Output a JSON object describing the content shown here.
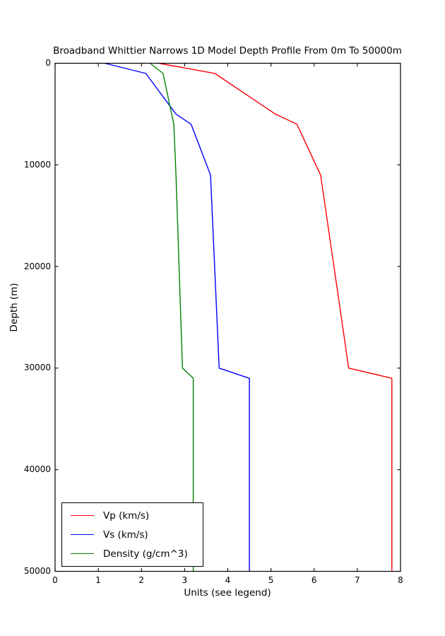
{
  "figure": {
    "background": "#ffffff",
    "text_color": "#000000"
  },
  "chart_data": {
    "type": "line",
    "title": "Broadband Whittier Narrows 1D Model Depth Profile From 0m To 50000m",
    "xlabel": "Units (see legend)",
    "ylabel": "Depth (m)",
    "xlim": [
      0,
      8
    ],
    "ylim": [
      0,
      50000
    ],
    "y_axis_inverted": true,
    "grid": false,
    "frame": "full-box",
    "tick_direction": "in",
    "x_ticks": [
      "0",
      "1",
      "2",
      "3",
      "4",
      "5",
      "6",
      "7",
      "8"
    ],
    "y_ticks": [
      "0",
      "10000",
      "20000",
      "30000",
      "40000",
      "50000"
    ],
    "legend_position": "lower-left",
    "series": [
      {
        "name": "Vp (km/s)",
        "color": "#ff0000",
        "points_value_depth_m": [
          [
            2.4,
            0
          ],
          [
            3.7,
            1000
          ],
          [
            5.1,
            5000
          ],
          [
            5.6,
            6000
          ],
          [
            6.15,
            11000
          ],
          [
            6.8,
            30000
          ],
          [
            7.8,
            31000
          ],
          [
            7.8,
            50000
          ]
        ]
      },
      {
        "name": "Vs (km/s)",
        "color": "#0000ff",
        "points_value_depth_m": [
          [
            1.15,
            0
          ],
          [
            2.1,
            1000
          ],
          [
            2.8,
            5000
          ],
          [
            3.15,
            6000
          ],
          [
            3.6,
            11000
          ],
          [
            3.8,
            30000
          ],
          [
            4.5,
            31000
          ],
          [
            4.5,
            50000
          ]
        ]
      },
      {
        "name": "Density (g/cm^3)",
        "color": "#008000",
        "points_value_depth_m": [
          [
            2.2,
            0
          ],
          [
            2.5,
            1000
          ],
          [
            2.7,
            5000
          ],
          [
            2.75,
            6000
          ],
          [
            2.8,
            11000
          ],
          [
            2.95,
            30000
          ],
          [
            3.2,
            31000
          ],
          [
            3.2,
            50000
          ]
        ]
      }
    ]
  }
}
